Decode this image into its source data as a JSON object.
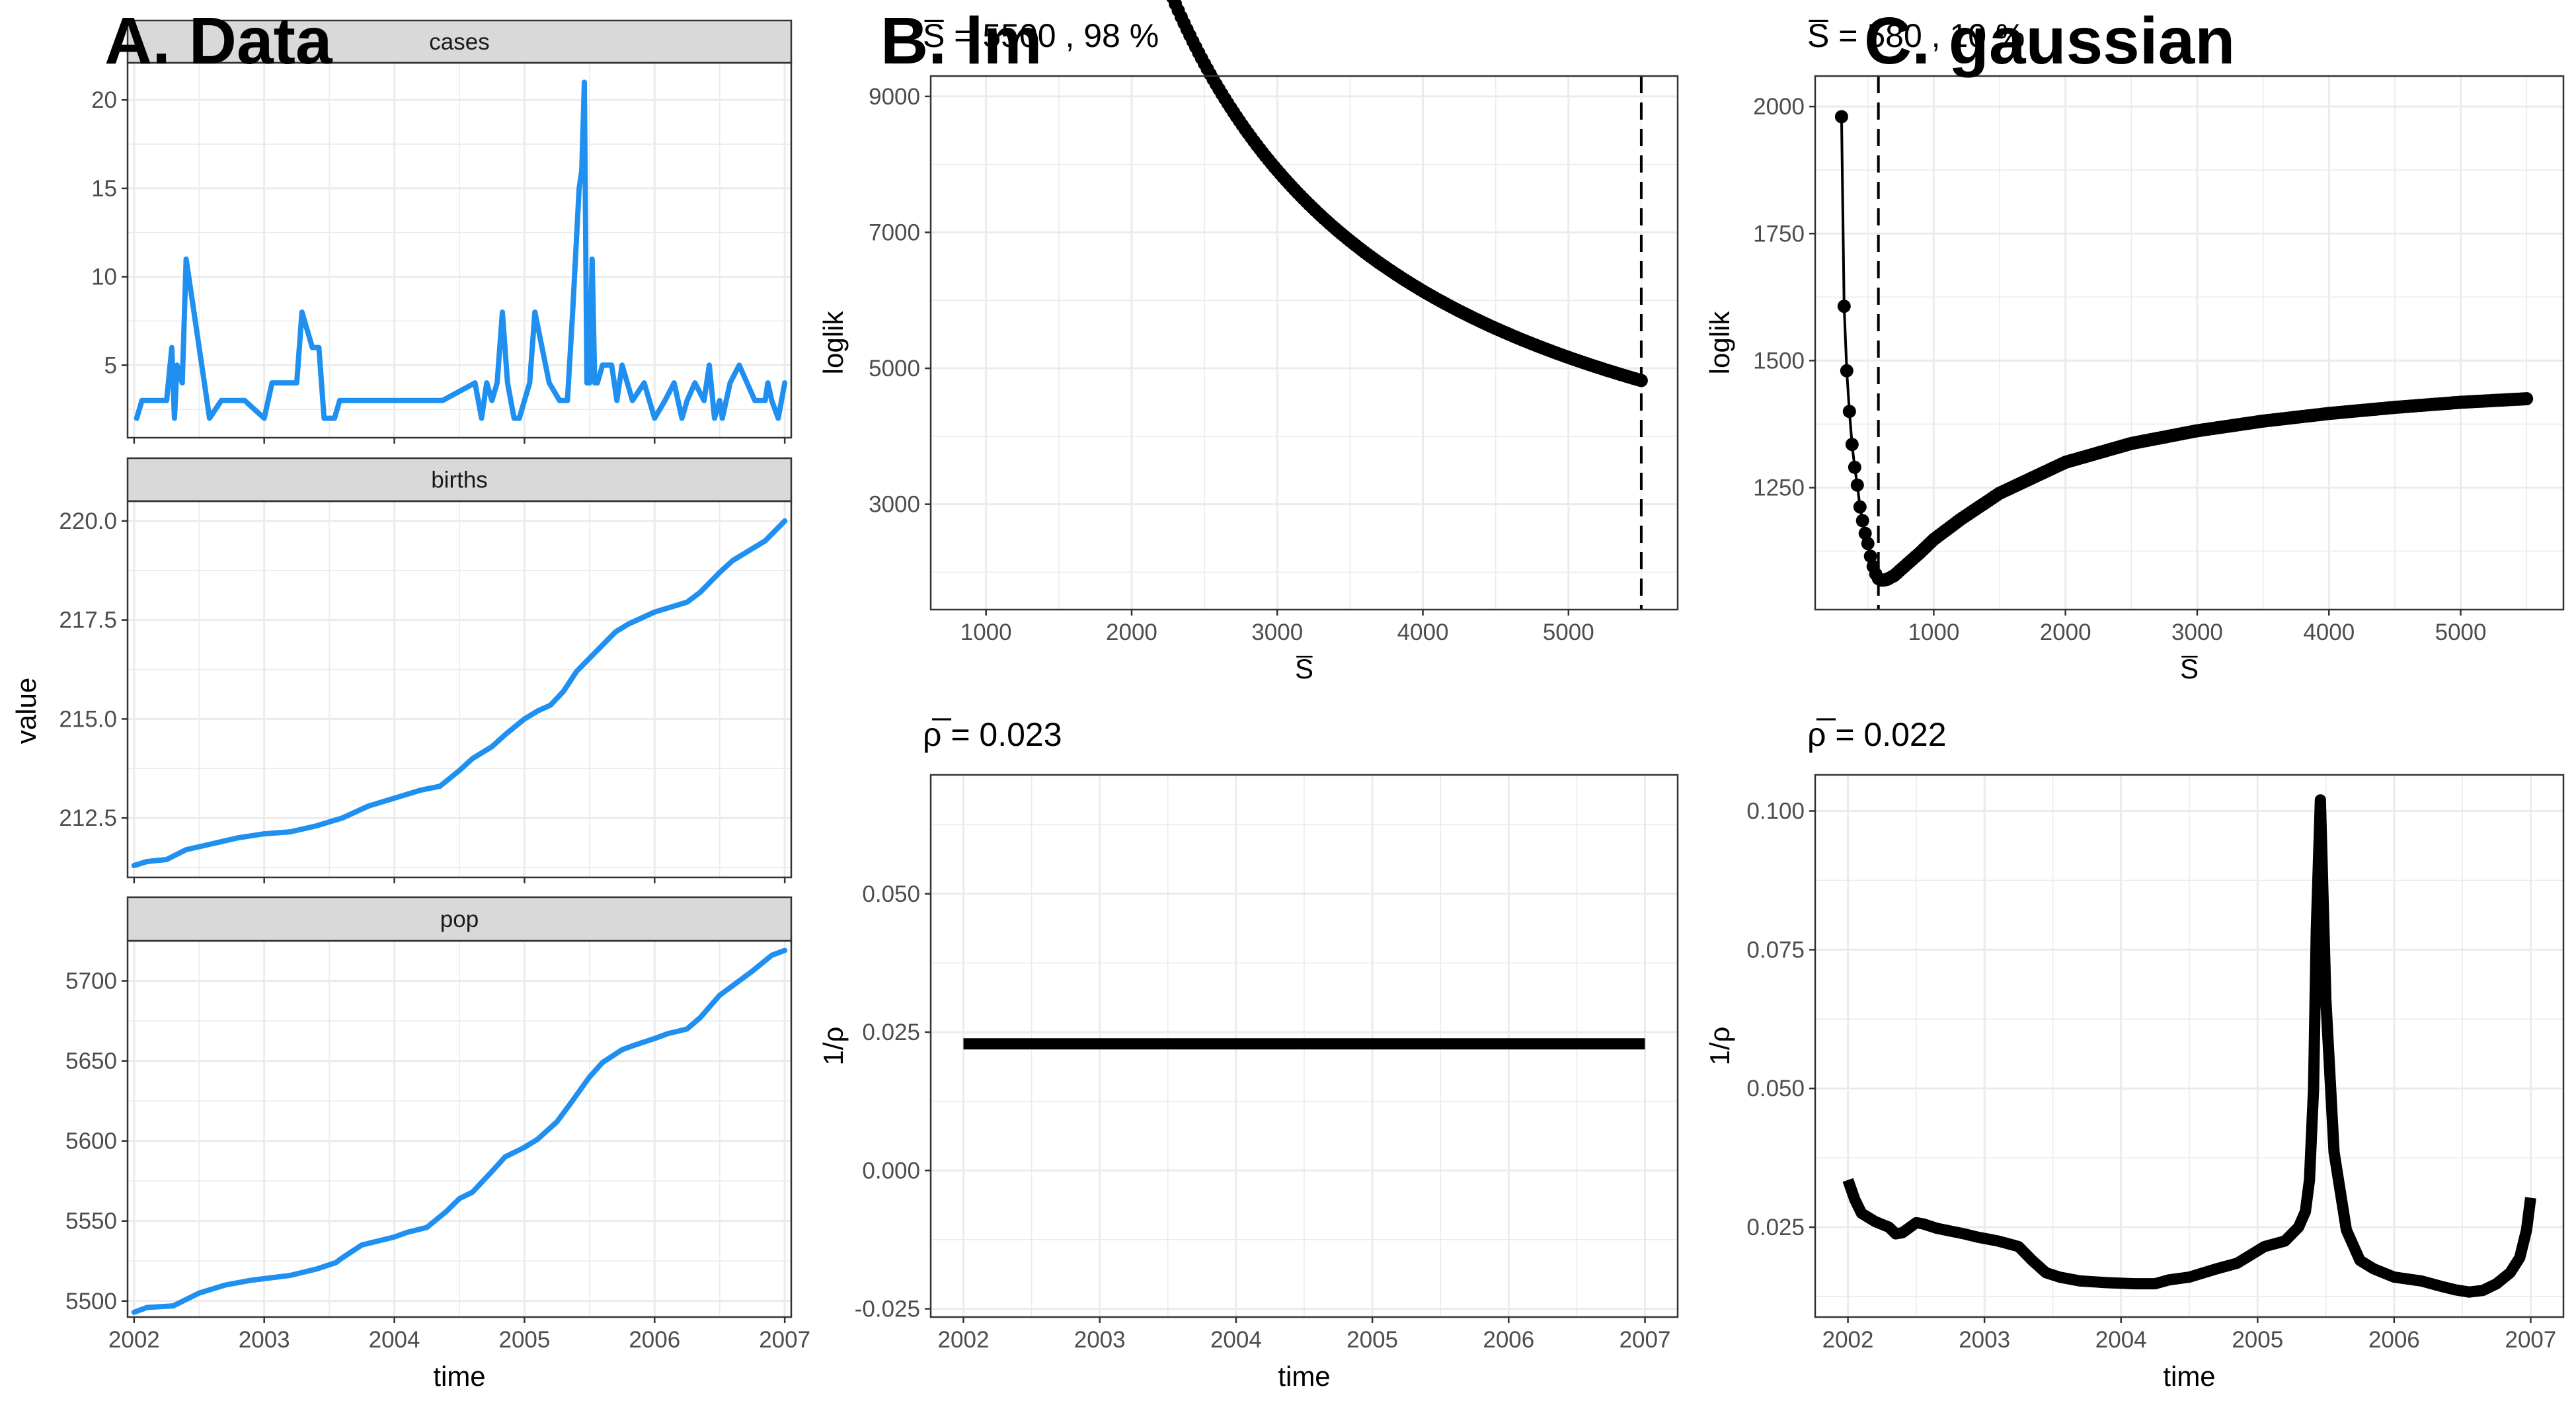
{
  "panel_titles": {
    "a": "A. Data",
    "b": "B. lm",
    "c": "C. gaussian"
  },
  "colors": {
    "data_line": "#1f8ff0",
    "fit_line": "#000000",
    "strip_fill": "#d9d9d9",
    "grid": "#ebebeb"
  },
  "chart_data": [
    {
      "id": "cases",
      "type": "line",
      "strip": "cases",
      "xlabel": "",
      "ylabel": "",
      "xlim": [
        2001.95,
        2007.05
      ],
      "ylim": [
        0.9,
        22.1
      ],
      "yticks": [
        5,
        10,
        15,
        20
      ],
      "ytick_labels": [
        "5",
        "10",
        "15",
        "20"
      ],
      "xticks": [],
      "x": [
        2002.02,
        2002.06,
        2002.12,
        2002.25,
        2002.29,
        2002.31,
        2002.33,
        2002.37,
        2002.4,
        2002.44,
        2002.5,
        2002.58,
        2002.67,
        2002.75,
        2002.81,
        2002.85,
        2003.0,
        2003.06,
        2003.25,
        2003.29,
        2003.37,
        2003.42,
        2003.46,
        2003.5,
        2003.54,
        2003.58,
        2003.62,
        2003.67,
        2003.75,
        2003.83,
        2003.87,
        2004.08,
        2004.37,
        2004.62,
        2004.67,
        2004.71,
        2004.75,
        2004.79,
        2004.83,
        2004.87,
        2004.92,
        2004.96,
        2005.0,
        2005.04,
        2005.08,
        2005.19,
        2005.27,
        2005.33,
        2005.37,
        2005.42,
        2005.44,
        2005.46,
        2005.48,
        2005.5,
        2005.52,
        2005.54,
        2005.56,
        2005.6,
        2005.67,
        2005.71,
        2005.75,
        2005.79,
        2005.83,
        2005.92,
        2006.0,
        2006.08,
        2006.15,
        2006.21,
        2006.25,
        2006.31,
        2006.38,
        2006.42,
        2006.46,
        2006.5,
        2006.52,
        2006.58,
        2006.65,
        2006.77,
        2006.85,
        2006.87,
        2006.9,
        2006.95,
        2007.0
      ],
      "y": [
        2,
        3,
        3,
        3,
        6,
        2,
        5,
        4,
        11,
        9,
        6,
        2,
        3,
        3,
        3,
        3,
        2,
        4,
        4,
        8,
        6,
        6,
        2,
        2,
        2,
        3,
        3,
        3,
        3,
        3,
        3,
        3,
        3,
        4,
        2,
        4,
        3,
        4,
        8,
        4,
        2,
        2,
        3,
        4,
        8,
        4,
        3,
        3,
        8,
        15,
        16,
        21,
        4,
        4,
        11,
        4,
        4,
        5,
        5,
        3,
        5,
        4,
        3,
        4,
        2,
        3,
        4,
        2,
        3,
        4,
        3,
        5,
        2,
        3,
        2,
        4,
        5,
        3,
        3,
        4,
        3,
        2,
        4
      ],
      "series_color": "#1f8ff0"
    },
    {
      "id": "births",
      "type": "line",
      "strip": "births",
      "xlabel": "",
      "ylabel": "value",
      "xlim": [
        2001.95,
        2007.05
      ],
      "ylim": [
        211.0,
        220.5
      ],
      "yticks": [
        212.5,
        215.0,
        217.5,
        220.0
      ],
      "ytick_labels": [
        "212.5",
        "215.0",
        "217.5",
        "220.0"
      ],
      "xticks": [],
      "x": [
        2002.0,
        2002.1,
        2002.25,
        2002.4,
        2002.6,
        2002.8,
        2003.0,
        2003.2,
        2003.4,
        2003.6,
        2003.8,
        2004.0,
        2004.2,
        2004.35,
        2004.5,
        2004.6,
        2004.75,
        2004.85,
        2005.0,
        2005.1,
        2005.2,
        2005.3,
        2005.4,
        2005.55,
        2005.7,
        2005.8,
        2005.9,
        2006.0,
        2006.1,
        2006.25,
        2006.35,
        2006.5,
        2006.6,
        2006.75,
        2006.85,
        2007.0
      ],
      "y": [
        211.3,
        211.4,
        211.45,
        211.7,
        211.85,
        212.0,
        212.1,
        212.15,
        212.3,
        212.5,
        212.8,
        213.0,
        213.2,
        213.3,
        213.7,
        214.0,
        214.3,
        214.6,
        215.0,
        215.2,
        215.35,
        215.7,
        216.2,
        216.7,
        217.2,
        217.4,
        217.55,
        217.7,
        217.8,
        217.95,
        218.2,
        218.7,
        219.0,
        219.3,
        219.5,
        220.0
      ],
      "series_color": "#1f8ff0"
    },
    {
      "id": "pop",
      "type": "line",
      "strip": "pop",
      "xlabel": "time",
      "ylabel": "",
      "xlim": [
        2001.95,
        2007.05
      ],
      "ylim": [
        5490,
        5725
      ],
      "yticks": [
        5500,
        5550,
        5600,
        5650,
        5700
      ],
      "ytick_labels": [
        "5500",
        "5550",
        "5600",
        "5650",
        "5700"
      ],
      "xticks": [
        2002,
        2003,
        2004,
        2005,
        2006,
        2007
      ],
      "xtick_labels": [
        "2002",
        "2003",
        "2004",
        "2005",
        "2006",
        "2007"
      ],
      "x": [
        2002.0,
        2002.1,
        2002.3,
        2002.5,
        2002.7,
        2002.9,
        2003.0,
        2003.2,
        2003.4,
        2003.55,
        2003.6,
        2003.75,
        2003.9,
        2004.0,
        2004.1,
        2004.25,
        2004.4,
        2004.5,
        2004.6,
        2004.75,
        2004.85,
        2004.95,
        2005.0,
        2005.1,
        2005.25,
        2005.35,
        2005.5,
        2005.6,
        2005.75,
        2005.85,
        2006.0,
        2006.1,
        2006.25,
        2006.35,
        2006.5,
        2006.6,
        2006.75,
        2006.9,
        2007.0
      ],
      "y": [
        5493,
        5496,
        5497,
        5505,
        5510,
        5513,
        5514,
        5516,
        5520,
        5524,
        5527,
        5535,
        5538,
        5540,
        5543,
        5546,
        5556,
        5564,
        5568,
        5581,
        5590,
        5594,
        5596,
        5601,
        5612,
        5623,
        5640,
        5649,
        5657,
        5660,
        5664,
        5667,
        5670,
        5677,
        5691,
        5697,
        5706,
        5716,
        5719
      ],
      "series_color": "#1f8ff0"
    },
    {
      "id": "lm_loglik",
      "type": "scatter",
      "title": "S̅ = 5500 , 98 %",
      "xlabel": "S̅",
      "ylabel": "loglik",
      "xlim": [
        620,
        5750
      ],
      "ylim": [
        1450,
        9300
      ],
      "yticks": [
        3000,
        5000,
        7000,
        9000
      ],
      "ytick_labels": [
        "3000",
        "5000",
        "7000",
        "9000"
      ],
      "xticks": [
        1000,
        2000,
        3000,
        4000,
        5000
      ],
      "xtick_labels": [
        "1000",
        "2000",
        "3000",
        "4000",
        "5000"
      ],
      "curve": {
        "a": 15000000.0,
        "b": 550,
        "c": 1790,
        "x_from": 860,
        "x_to": 5500,
        "step": 20
      },
      "vline": 5500
    },
    {
      "id": "gaussian_loglik",
      "type": "scatter",
      "title": "S̅ = 580 , 10 %",
      "xlabel": "S̅",
      "ylabel": "loglik",
      "xlim": [
        100,
        5780
      ],
      "ylim": [
        1010,
        2060
      ],
      "yticks": [
        1250,
        1500,
        1750,
        2000
      ],
      "ytick_labels": [
        "1250",
        "1500",
        "1750",
        "2000"
      ],
      "xticks": [
        1000,
        2000,
        3000,
        4000,
        5000
      ],
      "xtick_labels": [
        "1000",
        "2000",
        "3000",
        "4000",
        "5000"
      ],
      "points": [
        [
          300,
          1980
        ],
        [
          320,
          1607
        ],
        [
          340,
          1480
        ],
        [
          360,
          1400
        ],
        [
          380,
          1335
        ],
        [
          400,
          1290
        ],
        [
          420,
          1255
        ],
        [
          440,
          1212
        ],
        [
          460,
          1185
        ],
        [
          480,
          1160
        ],
        [
          500,
          1140
        ],
        [
          520,
          1115
        ],
        [
          540,
          1095
        ],
        [
          560,
          1080
        ],
        [
          580,
          1071
        ],
        [
          600,
          1068
        ],
        [
          620,
          1068
        ],
        [
          650,
          1070
        ],
        [
          700,
          1077
        ],
        [
          800,
          1100
        ],
        [
          900,
          1123
        ],
        [
          1000,
          1148
        ],
        [
          1200,
          1187
        ],
        [
          1500,
          1239
        ],
        [
          2000,
          1300
        ],
        [
          2500,
          1337
        ],
        [
          3000,
          1362
        ],
        [
          3500,
          1381
        ],
        [
          4000,
          1396
        ],
        [
          4500,
          1408
        ],
        [
          5000,
          1418
        ],
        [
          5500,
          1425
        ]
      ],
      "vline": 580
    },
    {
      "id": "lm_rho",
      "type": "line",
      "title": "ρ̅ = 0.023",
      "xlabel": "time",
      "ylabel": "1/ρ",
      "xlim": [
        2001.76,
        2007.24
      ],
      "ylim": [
        -0.0265,
        0.0715
      ],
      "yticks": [
        -0.025,
        0.0,
        0.025,
        0.05
      ],
      "ytick_labels": [
        "-0.025",
        "0.000",
        "0.025",
        "0.050"
      ],
      "xticks": [
        2002,
        2003,
        2004,
        2005,
        2006,
        2007
      ],
      "xtick_labels": [
        "2002",
        "2003",
        "2004",
        "2005",
        "2006",
        "2007"
      ],
      "x": [
        2002.0,
        2007.0
      ],
      "y": [
        0.0229,
        0.0229
      ]
    },
    {
      "id": "gaussian_rho",
      "type": "line",
      "title": "ρ̅ = 0.022",
      "xlabel": "time",
      "ylabel": "1/ρ",
      "xlim": [
        2001.76,
        2007.24
      ],
      "ylim": [
        0.0088,
        0.1065
      ],
      "yticks": [
        0.025,
        0.05,
        0.075,
        0.1
      ],
      "ytick_labels": [
        "0.025",
        "0.050",
        "0.075",
        "0.100"
      ],
      "xticks": [
        2002,
        2003,
        2004,
        2005,
        2006,
        2007
      ],
      "xtick_labels": [
        "2002",
        "2003",
        "2004",
        "2005",
        "2006",
        "2007"
      ],
      "x": [
        2002.0,
        2002.05,
        2002.1,
        2002.2,
        2002.3,
        2002.35,
        2002.4,
        2002.5,
        2002.55,
        2002.65,
        2002.75,
        2002.85,
        2002.95,
        2003.1,
        2003.25,
        2003.35,
        2003.45,
        2003.55,
        2003.7,
        2003.9,
        2004.1,
        2004.25,
        2004.35,
        2004.5,
        2004.7,
        2004.85,
        2004.95,
        2005.05,
        2005.2,
        2005.3,
        2005.35,
        2005.38,
        2005.41,
        2005.43,
        2005.46,
        2005.5,
        2005.56,
        2005.65,
        2005.75,
        2005.85,
        2006.0,
        2006.2,
        2006.35,
        2006.45,
        2006.55,
        2006.65,
        2006.75,
        2006.85,
        2006.92,
        2006.97,
        2007.0
      ],
      "y": [
        0.0335,
        0.03,
        0.0275,
        0.026,
        0.025,
        0.0238,
        0.024,
        0.0258,
        0.0256,
        0.0248,
        0.0243,
        0.0238,
        0.0232,
        0.0225,
        0.0215,
        0.019,
        0.0168,
        0.016,
        0.0153,
        0.015,
        0.0148,
        0.0148,
        0.0155,
        0.016,
        0.0175,
        0.0185,
        0.02,
        0.0215,
        0.0225,
        0.025,
        0.0278,
        0.0335,
        0.05,
        0.0785,
        0.102,
        0.066,
        0.0385,
        0.0245,
        0.019,
        0.0175,
        0.016,
        0.0153,
        0.0143,
        0.0137,
        0.0133,
        0.0136,
        0.0148,
        0.0168,
        0.0195,
        0.0245,
        0.0303
      ]
    }
  ]
}
